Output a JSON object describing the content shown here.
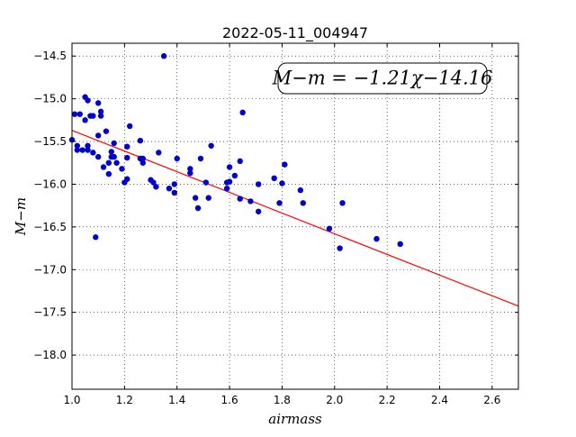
{
  "chart_data": {
    "type": "scatter",
    "title": "2022-05-11_004947",
    "xlabel": "airmass",
    "ylabel": "M−m",
    "xlim": [
      1.0,
      2.7
    ],
    "ylim": [
      -18.4,
      -14.35
    ],
    "y_inverted": true,
    "grid": true,
    "x_ticks": [
      1.0,
      1.2,
      1.4,
      1.6,
      1.8,
      2.0,
      2.2,
      2.4,
      2.6
    ],
    "x_tick_labels": [
      "1.0",
      "1.2",
      "1.4",
      "1.6",
      "1.8",
      "2.0",
      "2.2",
      "2.4",
      "2.6"
    ],
    "y_ticks": [
      -14.5,
      -15.0,
      -15.5,
      -16.0,
      -16.5,
      -17.0,
      -17.5,
      -18.0
    ],
    "y_tick_labels": [
      "−14.5",
      "−15.0",
      "−15.5",
      "−16.0",
      "−16.5",
      "−17.0",
      "−17.5",
      "−18.0"
    ],
    "annotation": "M−m = −1.21χ−14.16",
    "annotation_placement": "top-right",
    "fit": {
      "slope": -1.21,
      "intercept": -14.16,
      "color": "#ff0000"
    },
    "marker_color": "#0000cc",
    "points": [
      [
        1.0,
        -15.48
      ],
      [
        1.01,
        -15.18
      ],
      [
        1.03,
        -15.18
      ],
      [
        1.02,
        -15.55
      ],
      [
        1.02,
        -15.6
      ],
      [
        1.04,
        -15.6
      ],
      [
        1.05,
        -15.25
      ],
      [
        1.05,
        -14.98
      ],
      [
        1.06,
        -15.02
      ],
      [
        1.06,
        -15.55
      ],
      [
        1.06,
        -15.6
      ],
      [
        1.07,
        -15.2
      ],
      [
        1.08,
        -15.2
      ],
      [
        1.08,
        -15.63
      ],
      [
        1.09,
        -16.62
      ],
      [
        1.1,
        -15.05
      ],
      [
        1.1,
        -15.43
      ],
      [
        1.1,
        -15.68
      ],
      [
        1.11,
        -15.15
      ],
      [
        1.11,
        -15.2
      ],
      [
        1.12,
        -15.8
      ],
      [
        1.13,
        -15.38
      ],
      [
        1.14,
        -15.75
      ],
      [
        1.14,
        -15.88
      ],
      [
        1.15,
        -15.62
      ],
      [
        1.15,
        -15.68
      ],
      [
        1.16,
        -15.52
      ],
      [
        1.16,
        -15.68
      ],
      [
        1.17,
        -15.75
      ],
      [
        1.19,
        -15.82
      ],
      [
        1.2,
        -15.98
      ],
      [
        1.21,
        -15.56
      ],
      [
        1.21,
        -15.94
      ],
      [
        1.21,
        -15.69
      ],
      [
        1.22,
        -15.32
      ],
      [
        1.26,
        -15.7
      ],
      [
        1.26,
        -15.49
      ],
      [
        1.27,
        -15.7
      ],
      [
        1.27,
        -15.75
      ],
      [
        1.3,
        -15.95
      ],
      [
        1.31,
        -15.98
      ],
      [
        1.32,
        -16.03
      ],
      [
        1.33,
        -15.63
      ],
      [
        1.35,
        -14.5
      ],
      [
        1.37,
        -16.05
      ],
      [
        1.39,
        -16.1
      ],
      [
        1.39,
        -16.0
      ],
      [
        1.4,
        -15.7
      ],
      [
        1.45,
        -15.82
      ],
      [
        1.45,
        -15.87
      ],
      [
        1.47,
        -16.16
      ],
      [
        1.48,
        -16.28
      ],
      [
        1.49,
        -15.7
      ],
      [
        1.51,
        -15.98
      ],
      [
        1.52,
        -16.16
      ],
      [
        1.53,
        -15.55
      ],
      [
        1.59,
        -15.98
      ],
      [
        1.59,
        -16.05
      ],
      [
        1.6,
        -15.8
      ],
      [
        1.6,
        -15.97
      ],
      [
        1.62,
        -15.9
      ],
      [
        1.64,
        -16.17
      ],
      [
        1.64,
        -15.73
      ],
      [
        1.65,
        -15.16
      ],
      [
        1.68,
        -16.2
      ],
      [
        1.71,
        -16.32
      ],
      [
        1.71,
        -16.0
      ],
      [
        1.77,
        -15.93
      ],
      [
        1.79,
        -16.22
      ],
      [
        1.8,
        -15.99
      ],
      [
        1.81,
        -15.77
      ],
      [
        1.87,
        -16.07
      ],
      [
        1.88,
        -16.22
      ],
      [
        1.98,
        -16.52
      ],
      [
        2.02,
        -16.75
      ],
      [
        2.03,
        -16.22
      ],
      [
        2.16,
        -16.64
      ],
      [
        2.25,
        -16.7
      ]
    ]
  }
}
